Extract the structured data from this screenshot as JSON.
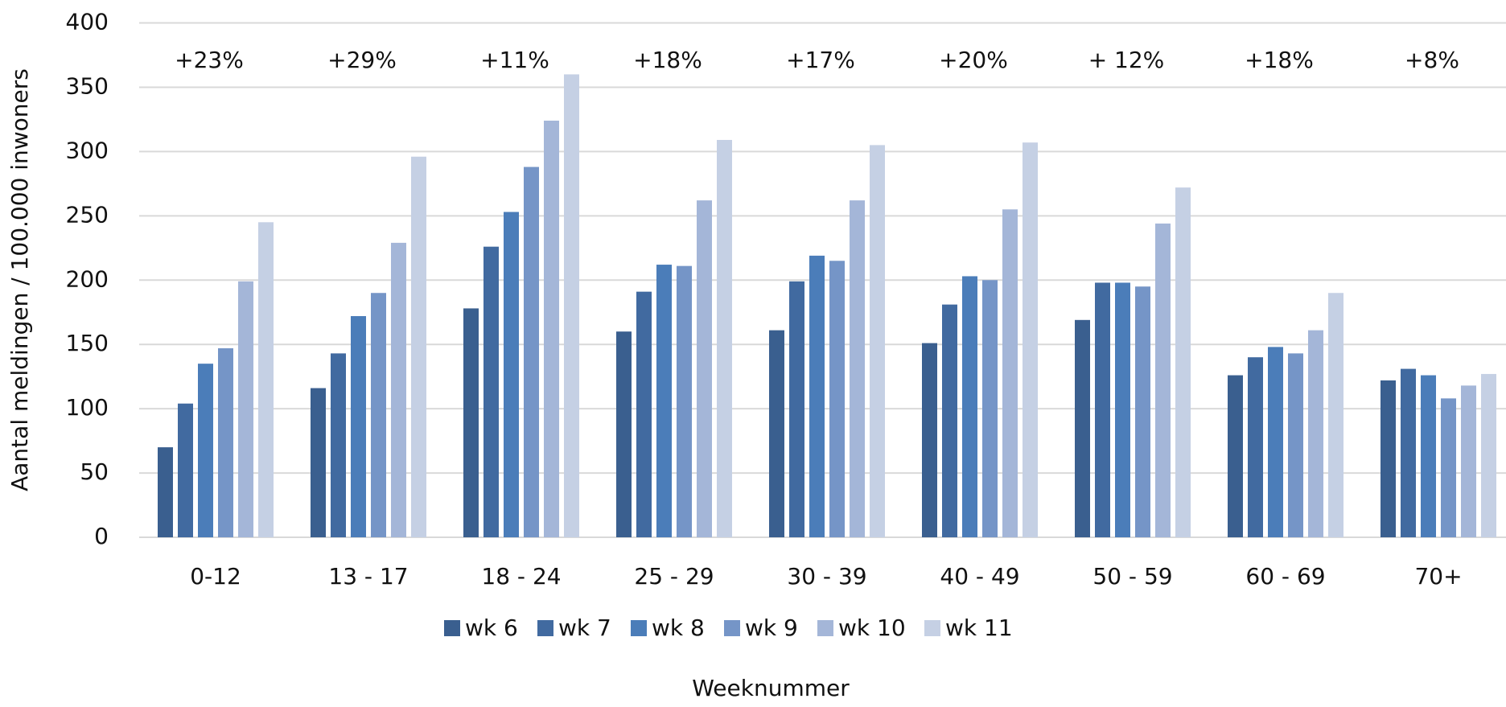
{
  "chart_data": {
    "type": "bar",
    "x_label": "Weeknummer",
    "y_label": "Aantal meldingen / 100.000 inwoners",
    "categories": [
      "0-12",
      "13 - 17",
      "18 - 24",
      "25 - 29",
      "30 - 39",
      "40 - 49",
      "50 - 59",
      "60 - 69",
      "70+"
    ],
    "annotations": [
      "+23%",
      "+29%",
      "+11%",
      "+18%",
      "+17%",
      "+20%",
      "+ 12%",
      "+18%",
      "+8%"
    ],
    "series": [
      {
        "name": "wk 6",
        "color": "#3a5f8f",
        "values": [
          70,
          116,
          178,
          160,
          161,
          151,
          169,
          126,
          122
        ]
      },
      {
        "name": "wk 7",
        "color": "#416aa0",
        "values": [
          104,
          143,
          226,
          191,
          199,
          181,
          198,
          140,
          131
        ]
      },
      {
        "name": "wk 8",
        "color": "#4b7db9",
        "values": [
          135,
          172,
          253,
          212,
          219,
          203,
          198,
          148,
          126
        ]
      },
      {
        "name": "wk 9",
        "color": "#7595c7",
        "values": [
          147,
          190,
          288,
          211,
          215,
          200,
          195,
          143,
          108
        ]
      },
      {
        "name": "wk 10",
        "color": "#a4b6d8",
        "values": [
          199,
          229,
          324,
          262,
          262,
          255,
          244,
          161,
          118
        ]
      },
      {
        "name": "wk 11",
        "color": "#c5d0e4",
        "values": [
          245,
          296,
          360,
          309,
          305,
          307,
          272,
          190,
          127
        ]
      }
    ],
    "ylim": [
      0,
      400
    ],
    "yticks": [
      0,
      50,
      100,
      150,
      200,
      250,
      300,
      350,
      400
    ],
    "grid": true
  }
}
